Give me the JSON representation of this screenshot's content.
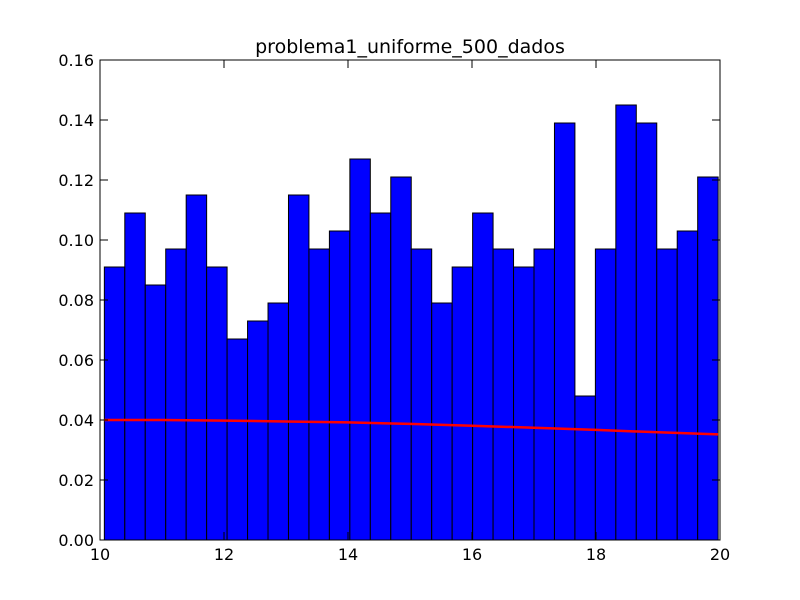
{
  "chart_data": {
    "type": "bar",
    "title": "problema1_uniforme_500_dados",
    "xlabel": "",
    "ylabel": "",
    "xlim": [
      10,
      20
    ],
    "ylim": [
      0,
      0.16
    ],
    "x_ticks": [
      "10",
      "12",
      "14",
      "16",
      "18",
      "20"
    ],
    "y_ticks": [
      "0.00",
      "0.02",
      "0.04",
      "0.06",
      "0.08",
      "0.10",
      "0.12",
      "0.14",
      "0.16"
    ],
    "bin_edges": [
      10.07,
      10.4,
      10.73,
      11.06,
      11.39,
      11.72,
      12.05,
      12.38,
      12.71,
      13.04,
      13.37,
      13.7,
      14.03,
      14.36,
      14.69,
      15.02,
      15.35,
      15.68,
      16.01,
      16.34,
      16.67,
      17.0,
      17.33,
      17.66,
      17.99,
      18.32,
      18.65,
      18.98,
      19.31,
      19.64,
      19.97
    ],
    "values": [
      0.091,
      0.109,
      0.085,
      0.097,
      0.115,
      0.091,
      0.067,
      0.073,
      0.079,
      0.115,
      0.097,
      0.103,
      0.127,
      0.109,
      0.121,
      0.097,
      0.079,
      0.091,
      0.109,
      0.097,
      0.091,
      0.097,
      0.139,
      0.048,
      0.097,
      0.145,
      0.139,
      0.097,
      0.103,
      0.121
    ],
    "bar_color": "#0000ff",
    "line": {
      "color": "#ff0000",
      "x": [
        10.07,
        11,
        12,
        13,
        14,
        15,
        16,
        17,
        18,
        19,
        19.97
      ],
      "y": [
        0.04,
        0.04,
        0.0398,
        0.0395,
        0.0392,
        0.0387,
        0.0381,
        0.0374,
        0.0367,
        0.0359,
        0.0352
      ]
    },
    "grid": false
  }
}
